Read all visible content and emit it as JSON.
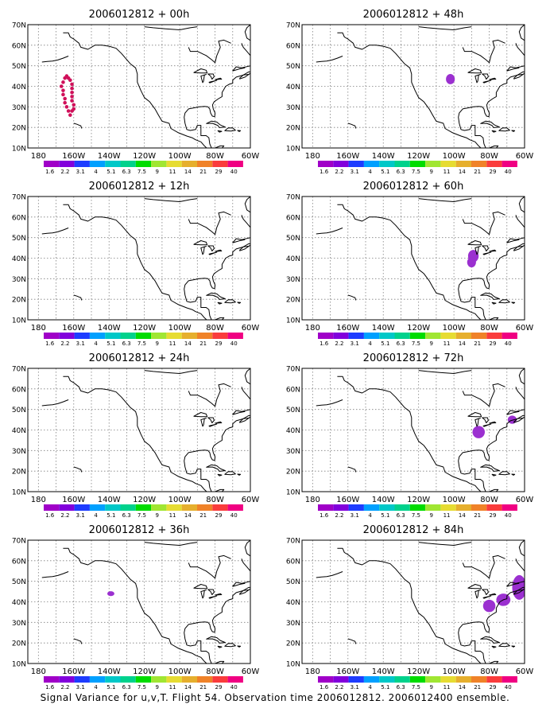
{
  "caption": "Signal Variance for u,v,T. Flight 54. Observation time 2006012812. 2006012400 ensemble.",
  "lat_labels": [
    "70N",
    "60N",
    "50N",
    "40N",
    "30N",
    "20N",
    "10N"
  ],
  "lon_labels": [
    "180",
    "160W",
    "140W",
    "120W",
    "100W",
    "80W",
    "60W"
  ],
  "colorbar": {
    "labels": [
      "1.6",
      "2.2",
      "3.1",
      "4",
      "5.1",
      "6.3",
      "7.5",
      "9",
      "11",
      "14",
      "21",
      "29",
      "40"
    ],
    "colors": [
      "#a000c8",
      "#8200dc",
      "#1e3cff",
      "#00a0ff",
      "#00c8c8",
      "#00d28c",
      "#00dc00",
      "#a0e632",
      "#e6dc32",
      "#e6af2d",
      "#f08228",
      "#fa3c3c",
      "#f00082"
    ]
  },
  "colors": {
    "signal_fill": "#9b30d0",
    "dot_color": "#d0105a",
    "grid": "#7f7f7f"
  },
  "panels": [
    {
      "title": "2006012812 + 00h"
    },
    {
      "title": "2006012812 + 48h"
    },
    {
      "title": "2006012812 + 12h"
    },
    {
      "title": "2006012812 + 60h"
    },
    {
      "title": "2006012812 + 24h"
    },
    {
      "title": "2006012812 + 72h"
    },
    {
      "title": "2006012812 + 36h"
    },
    {
      "title": "2006012812 + 84h"
    }
  ],
  "signal_regions": [
    {
      "panel": 0,
      "type": "dots",
      "points": [
        [
          -167,
          40
        ],
        [
          -166,
          42
        ],
        [
          -165,
          44
        ],
        [
          -164,
          45
        ],
        [
          -163,
          44
        ],
        [
          -162,
          43
        ],
        [
          -161,
          41
        ],
        [
          -161,
          39
        ],
        [
          -161,
          37
        ],
        [
          -161,
          35
        ],
        [
          -161,
          33
        ],
        [
          -160,
          31
        ],
        [
          -160,
          29
        ],
        [
          -161,
          28
        ],
        [
          -162,
          26
        ],
        [
          -163,
          28
        ],
        [
          -164,
          30
        ],
        [
          -165,
          32
        ],
        [
          -165,
          34
        ],
        [
          -166,
          36
        ],
        [
          -166,
          38
        ]
      ]
    },
    {
      "panel": 1,
      "type": "blobs",
      "blobs": [
        [
          -102,
          43.5,
          2.5,
          2.5
        ]
      ]
    },
    {
      "panel": 3,
      "type": "blobs",
      "blobs": [
        [
          -89,
          41,
          3,
          3
        ],
        [
          -90,
          38,
          2.5,
          2.5
        ]
      ]
    },
    {
      "panel": 5,
      "type": "blobs",
      "blobs": [
        [
          -86,
          39,
          3.5,
          3
        ],
        [
          -67,
          45,
          2.5,
          2
        ]
      ]
    },
    {
      "panel": 6,
      "type": "blobs",
      "blobs": [
        [
          -139,
          44,
          2,
          1.2
        ]
      ]
    },
    {
      "panel": 7,
      "type": "blobs",
      "blobs": [
        [
          -63,
          47,
          4,
          6
        ],
        [
          -72,
          41,
          4,
          3
        ],
        [
          -80,
          38,
          3.5,
          3
        ]
      ]
    }
  ]
}
